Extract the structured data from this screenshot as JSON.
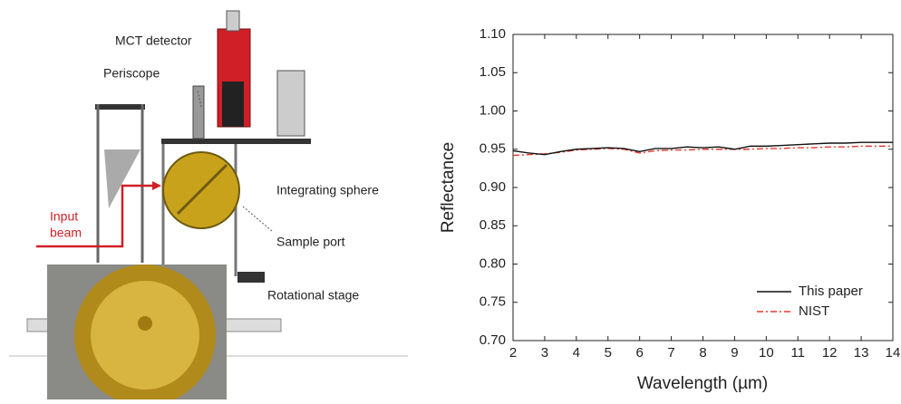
{
  "diagram": {
    "labels": {
      "detector": "MCT detector",
      "periscope": "Periscope",
      "sphere": "Integrating sphere",
      "sample_port": "Sample port",
      "stage": "Rotational stage",
      "input_beam": [
        "Input",
        "beam"
      ]
    }
  },
  "chart_data": {
    "type": "line",
    "xlabel": "Wavelength (µm)",
    "ylabel": "Reflectance",
    "x": [
      2,
      2.5,
      3,
      3.5,
      4,
      4.5,
      5,
      5.5,
      6,
      6.5,
      7,
      7.5,
      8,
      8.5,
      9,
      9.5,
      10,
      10.5,
      11,
      11.5,
      12,
      12.5,
      13,
      13.5,
      14
    ],
    "series": [
      {
        "name": "This paper",
        "color": "#111111",
        "linestyle": "solid",
        "values": [
          0.948,
          0.945,
          0.943,
          0.947,
          0.95,
          0.951,
          0.952,
          0.951,
          0.947,
          0.951,
          0.951,
          0.953,
          0.952,
          0.953,
          0.95,
          0.954,
          0.954,
          0.955,
          0.956,
          0.957,
          0.958,
          0.958,
          0.959,
          0.959,
          0.959
        ]
      },
      {
        "name": "NIST",
        "color": "#e8392b",
        "linestyle": "dashdot",
        "values": [
          0.942,
          0.943,
          0.944,
          0.946,
          0.949,
          0.95,
          0.951,
          0.95,
          0.945,
          0.948,
          0.949,
          0.949,
          0.95,
          0.95,
          0.95,
          0.95,
          0.951,
          0.951,
          0.952,
          0.952,
          0.953,
          0.953,
          0.954,
          0.954,
          0.954
        ]
      }
    ],
    "xlim": [
      2,
      14
    ],
    "xticks": [
      2,
      3,
      4,
      5,
      6,
      7,
      8,
      9,
      10,
      11,
      12,
      13,
      14
    ],
    "ylim": [
      0.7,
      1.1
    ],
    "yticks": [
      {
        "value": 0.7,
        "label": "0.70"
      },
      0.75,
      {
        "value": 0.8,
        "label": "0.80"
      },
      0.85,
      {
        "value": 0.9,
        "label": "0.90"
      },
      0.95,
      {
        "value": 1.0,
        "label": "1.00"
      },
      1.05,
      {
        "value": 1.1,
        "label": "1.10"
      }
    ],
    "legend": "lower right"
  }
}
